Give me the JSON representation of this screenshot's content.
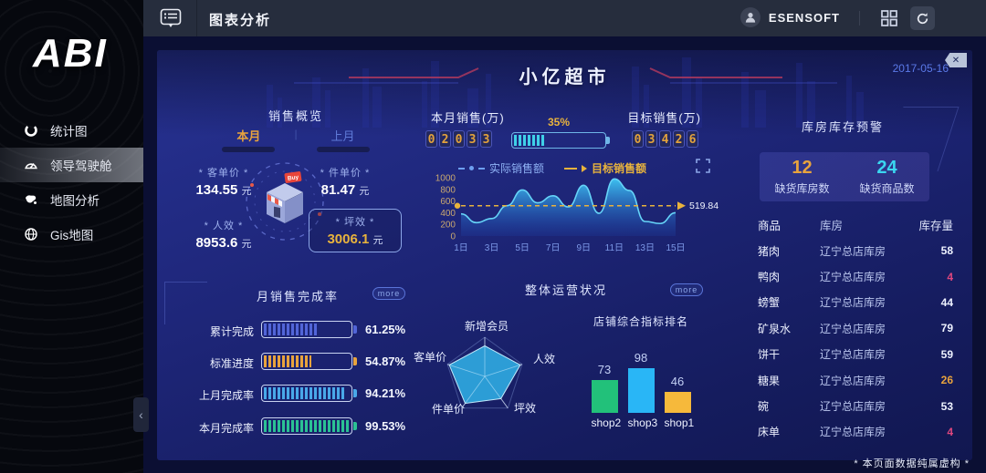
{
  "sidebar": {
    "logo": "ABI",
    "collapse_glyph": "‹",
    "items": [
      {
        "label": "统计图",
        "icon": "donut-chart-icon",
        "active": false
      },
      {
        "label": "领导驾驶舱",
        "icon": "gauge-icon",
        "active": true
      },
      {
        "label": "地图分析",
        "icon": "map-icon",
        "active": false
      },
      {
        "label": "Gis地图",
        "icon": "globe-icon",
        "active": false
      }
    ]
  },
  "topbar": {
    "title": "图表分析",
    "user": "ESENSOFT"
  },
  "dashboard": {
    "title": "小亿超市",
    "date": "2017-05-16",
    "close_glyph": "✕",
    "sales_overview": {
      "title": "销售概览",
      "tabs": [
        {
          "label": "本月"
        },
        {
          "label": "上月"
        }
      ],
      "tab_divider": "|",
      "metrics": [
        {
          "label": "* 客单价 *",
          "value": "134.55",
          "unit": "元"
        },
        {
          "label": "* 件单价 *",
          "value": "81.47",
          "unit": "元"
        },
        {
          "label": "* 人效 *",
          "value": "8953.6",
          "unit": "元"
        },
        {
          "label": "* 坪效 *",
          "value": "3006.1",
          "unit": "元"
        }
      ]
    },
    "month_sales": {
      "label": "本月销售(万)",
      "digits": "02033",
      "progress_label": "35%",
      "progress_pct": 35
    },
    "target_sales": {
      "label": "目标销售(万)",
      "digits": "03426"
    },
    "completion": {
      "title": "月销售完成率",
      "more": "more",
      "rows": [
        {
          "label": "累计完成",
          "value": "61.25%",
          "pct": 61.25,
          "color": "#5265d8"
        },
        {
          "label": "标准进度",
          "value": "54.87%",
          "pct": 54.87,
          "color": "#e8a33d"
        },
        {
          "label": "上月完成率",
          "value": "94.21%",
          "pct": 94.21,
          "color": "#49a8e8"
        },
        {
          "label": "本月完成率",
          "value": "99.53%",
          "pct": 99.53,
          "color": "#2bc194"
        }
      ]
    },
    "operations": {
      "title": "整体运营状况",
      "more": "more",
      "shop_title": "店铺综合指标排名"
    },
    "inventory": {
      "title": "库房库存预警",
      "alerts": [
        {
          "value": "12",
          "label": "缺货库房数",
          "color": "#e8a33d"
        },
        {
          "value": "24",
          "label": "缺货商品数",
          "color": "#3ad6f0"
        }
      ],
      "table": {
        "headers": [
          "商品",
          "库房",
          "库存量"
        ],
        "rows": [
          {
            "product": "猪肉",
            "warehouse": "辽宁总店库房",
            "qty": "58",
            "qty_color": "#eef2ff"
          },
          {
            "product": "鸭肉",
            "warehouse": "辽宁总店库房",
            "qty": "4",
            "qty_color": "#e0477e"
          },
          {
            "product": "螃蟹",
            "warehouse": "辽宁总店库房",
            "qty": "44",
            "qty_color": "#eef2ff"
          },
          {
            "product": "矿泉水",
            "warehouse": "辽宁总店库房",
            "qty": "79",
            "qty_color": "#eef2ff"
          },
          {
            "product": "饼干",
            "warehouse": "辽宁总店库房",
            "qty": "59",
            "qty_color": "#eef2ff"
          },
          {
            "product": "糖果",
            "warehouse": "辽宁总店库房",
            "qty": "26",
            "qty_color": "#e8a33d"
          },
          {
            "product": "碗",
            "warehouse": "辽宁总店库房",
            "qty": "53",
            "qty_color": "#eef2ff"
          },
          {
            "product": "床单",
            "warehouse": "辽宁总店库房",
            "qty": "4",
            "qty_color": "#e0477e"
          }
        ]
      }
    },
    "footnote": "* 本页面数据纯属虚构 *"
  },
  "chart_data": [
    {
      "id": "sales_trend",
      "type": "area",
      "legend": [
        "实际销售额",
        "目标销售额"
      ],
      "x_ticks": [
        "1日",
        "3日",
        "5日",
        "7日",
        "9日",
        "11日",
        "13日",
        "15日"
      ],
      "values": [
        380,
        230,
        300,
        520,
        790,
        570,
        690,
        500,
        870,
        390,
        980,
        780,
        250,
        215,
        400
      ],
      "target": 519.84,
      "target_label": "519.84",
      "ylim": [
        0,
        1000
      ],
      "yticks": [
        0,
        200,
        400,
        600,
        800,
        1000
      ]
    },
    {
      "id": "operations_radar",
      "type": "radar",
      "axes": [
        "新增会员",
        "人效",
        "坪效",
        "件单价",
        "客单价"
      ],
      "values": [
        78,
        95,
        70,
        85,
        95
      ],
      "max": 100
    },
    {
      "id": "shop_ranking",
      "type": "bar",
      "title": "店铺综合指标排名",
      "categories": [
        "shop2",
        "shop3",
        "shop1"
      ],
      "values": [
        73,
        98,
        46
      ],
      "colors": [
        "#22c17a",
        "#29b6f6",
        "#f6b93b"
      ],
      "ylim": [
        0,
        100
      ]
    }
  ]
}
